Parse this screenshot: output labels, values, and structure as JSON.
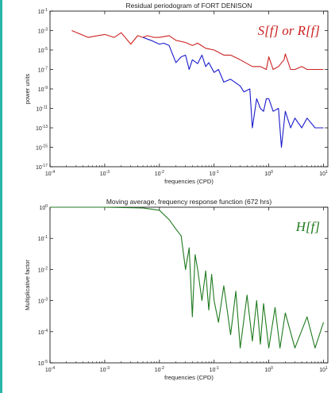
{
  "colors": {
    "red_series": "#cc2222",
    "blue_series": "#1a1acc",
    "green_series": "#1f7a1f",
    "accent": "#29b6a8"
  },
  "chart_data": [
    {
      "type": "line",
      "title": "Residual periodogram of FORT DENISON",
      "xlabel": "frequencies (CPD)",
      "ylabel": "power units",
      "xscale": "log",
      "yscale": "log",
      "xlim": [
        0.0001,
        12
      ],
      "ylim": [
        1e-17,
        0.1
      ],
      "x_ticks": [
        {
          "label": "10",
          "sup": "-4"
        },
        {
          "label": "10",
          "sup": "-3"
        },
        {
          "label": "10",
          "sup": "-2"
        },
        {
          "label": "10",
          "sup": "-1"
        },
        {
          "label": "10",
          "sup": "0"
        },
        {
          "label": "10",
          "sup": "1"
        }
      ],
      "y_ticks": [
        {
          "label": "10",
          "sup": "-1"
        },
        {
          "label": "10",
          "sup": "-3"
        },
        {
          "label": "10",
          "sup": "-5"
        },
        {
          "label": "10",
          "sup": "-7"
        },
        {
          "label": "10",
          "sup": "-9"
        },
        {
          "label": "10",
          "sup": "-11"
        },
        {
          "label": "10",
          "sup": "-13"
        },
        {
          "label": "10",
          "sup": "-15"
        },
        {
          "label": "10",
          "sup": "-17"
        }
      ],
      "annotation": "S[f] or R[f]",
      "series": [
        {
          "x": [
            0.00025,
            0.0005,
            0.001,
            0.0015,
            0.002,
            0.003,
            0.004,
            0.005,
            0.006,
            0.008,
            0.01,
            0.015,
            0.02,
            0.03,
            0.04,
            0.05,
            0.07,
            0.1,
            0.15,
            0.2,
            0.3,
            0.5,
            0.7,
            0.9,
            1.0,
            1.2,
            1.5,
            1.9,
            2.0,
            2.5,
            3,
            4,
            5,
            7,
            10
          ],
          "y": [
            0.001,
            0.0002,
            0.0004,
            0.0002,
            0.0006,
            4e-05,
            0.0003,
            0.0002,
            0.0003,
            0.0002,
            0.0002,
            0.0003,
            0.0001,
            6e-05,
            3e-05,
            5e-05,
            1.5e-05,
            1e-05,
            3e-06,
            3e-06,
            1e-06,
            2e-07,
            2e-07,
            1e-07,
            2e-06,
            1e-07,
            2e-07,
            1e-06,
            4e-06,
            1e-07,
            1e-07,
            2e-07,
            1e-07,
            1e-07,
            1e-07
          ]
        },
        {
          "x": [
            0.005,
            0.007,
            0.01,
            0.012,
            0.015,
            0.02,
            0.025,
            0.03,
            0.035,
            0.04,
            0.05,
            0.06,
            0.07,
            0.08,
            0.1,
            0.12,
            0.15,
            0.2,
            0.3,
            0.35,
            0.45,
            0.5,
            0.6,
            0.7,
            0.8,
            0.9,
            1.0,
            1.2,
            1.5,
            1.7,
            2.0,
            2.5,
            3,
            4,
            5,
            7,
            10
          ],
          "y": [
            0.0002,
            0.0001,
            4e-05,
            5e-05,
            3e-05,
            5e-07,
            2e-06,
            3e-06,
            1e-07,
            1e-06,
            4e-07,
            3e-06,
            2e-07,
            5e-07,
            5e-08,
            1e-07,
            5e-09,
            1e-08,
            2e-09,
            5e-10,
            1e-09,
            1e-13,
            1e-10,
            1e-11,
            5e-12,
            1e-10,
            1e-10,
            5e-12,
            1e-11,
            1e-15,
            5e-12,
            1e-13,
            1e-12,
            1e-13,
            1e-12,
            1e-13,
            1e-13
          ]
        }
      ]
    },
    {
      "type": "line",
      "title": "Moving average, frequency response function (672 hrs)",
      "xlabel": "frequencies (CPD)",
      "ylabel": "Multiplicative factor",
      "xscale": "log",
      "yscale": "log",
      "xlim": [
        0.0001,
        12
      ],
      "ylim": [
        1e-05,
        1
      ],
      "x_ticks": [
        {
          "label": "10",
          "sup": "-4"
        },
        {
          "label": "10",
          "sup": "-3"
        },
        {
          "label": "10",
          "sup": "-2"
        },
        {
          "label": "10",
          "sup": "-1"
        },
        {
          "label": "10",
          "sup": "0"
        },
        {
          "label": "10",
          "sup": "1"
        }
      ],
      "y_ticks": [
        {
          "label": "10",
          "sup": "0"
        },
        {
          "label": "10",
          "sup": "-1"
        },
        {
          "label": "10",
          "sup": "-2"
        },
        {
          "label": "10",
          "sup": "-3"
        },
        {
          "label": "10",
          "sup": "-4"
        },
        {
          "label": "10",
          "sup": "-5"
        }
      ],
      "annotation": "H[f]",
      "series": [
        {
          "x": [
            0.0001,
            0.001,
            0.005,
            0.01,
            0.015,
            0.02,
            0.025,
            0.03,
            0.035,
            0.04,
            0.045,
            0.05,
            0.06,
            0.07,
            0.08,
            0.09,
            0.1,
            0.12,
            0.15,
            0.2,
            0.25,
            0.3,
            0.4,
            0.5,
            0.6,
            0.7,
            0.8,
            1.0,
            1.3,
            1.6,
            2.0,
            3.0,
            5.0,
            7.0,
            10
          ],
          "y": [
            1,
            1,
            0.95,
            0.8,
            0.4,
            0.2,
            0.12,
            0.01,
            0.05,
            0.0003,
            0.03,
            0.01,
            0.001,
            0.009,
            0.0005,
            0.007,
            0.001,
            0.0002,
            0.003,
            8e-05,
            0.002,
            3e-05,
            0.0015,
            5e-05,
            0.001,
            4e-05,
            0.0008,
            3e-05,
            0.0006,
            3e-05,
            0.0004,
            3e-05,
            0.0003,
            3e-05,
            0.0002
          ]
        }
      ]
    }
  ]
}
